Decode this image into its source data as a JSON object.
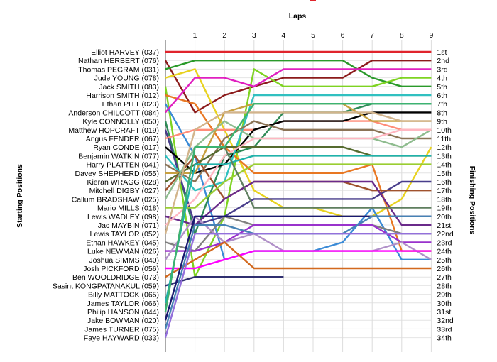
{
  "chart_data": {
    "type": "line",
    "title": "Laps",
    "ylabel_left": "Starting Positions",
    "ylabel_right": "Finishing Positions",
    "x": [
      1,
      2,
      3,
      4,
      5,
      6,
      7,
      8,
      9
    ],
    "left_labels": [
      "Elliot HARVEY (037)",
      "Nathan HERBERT (076)",
      "Thomas PEGRAM (031)",
      "Jude YOUNG (078)",
      "Jack SMITH (083)",
      "Harrison SMITH (012)",
      "Ethan PITT (023)",
      "Anderson CHILCOTT (084)",
      "Kyle CONNOLLY (050)",
      "Matthew HOPCRAFT (019)",
      "Angus FENDER (067)",
      "Ryan CONDE (017)",
      "Benjamin WATKIN (077)",
      "Harry PLATTEN (041)",
      "Davey SHEPHERD (055)",
      "Kieran WRAGG (028)",
      "Mitchell DIGBY (027)",
      "Callum BRADSHAW (025)",
      "Mario MILLS (018)",
      "Lewis WADLEY (098)",
      "Jac MAYBIN (071)",
      "Lewis TAYLOR (052)",
      "Ethan HAWKEY (045)",
      "Luke NEWMAN (026)",
      "Joshua SIMMS (040)",
      "Josh PICKFORD (056)",
      "Ben WOOLDRIDGE (073)",
      "Sasint KONGPATANAKUL (059)",
      "Billy MATTOCK (065)",
      "James TAYLOR (066)",
      "Philip HANSON (044)",
      "Jake BOWMAN (020)",
      "James TURNER (075)",
      "Faye HAYWARD (033)"
    ],
    "right_labels": [
      "1st",
      "2nd",
      "3rd",
      "4th",
      "5th",
      "6th",
      "7th",
      "8th",
      "9th",
      "10th",
      "11th",
      "12th",
      "13th",
      "14th",
      "15th",
      "16th",
      "17th",
      "18th",
      "19th",
      "20th",
      "21st",
      "22nd",
      "23rd",
      "24th",
      "25th",
      "26th",
      "27th",
      "28th",
      "29th",
      "30th",
      "31st",
      "32nd",
      "33rd",
      "34th"
    ],
    "y_range": [
      1,
      34
    ],
    "grid": true,
    "series": [
      {
        "name": "Elliot HARVEY (037)",
        "color": "#e0242c",
        "positions": [
          1,
          1,
          1,
          1,
          1,
          1,
          1,
          1,
          1,
          1
        ]
      },
      {
        "name": "Nathan HERBERT (076)",
        "color": "#8b1a1a",
        "positions": [
          2,
          8,
          6,
          5,
          4,
          4,
          4,
          2,
          2,
          2
        ]
      },
      {
        "name": "Thomas PEGRAM (031)",
        "color": "#2a9a2a",
        "positions": [
          3,
          2,
          2,
          2,
          2,
          2,
          2,
          4,
          5,
          5
        ]
      },
      {
        "name": "Jude YOUNG (078)",
        "color": "#e8d21f",
        "positions": [
          4,
          3,
          10,
          17,
          19,
          19,
          20,
          20,
          18,
          12
        ]
      },
      {
        "name": "Jack SMITH (083)",
        "color": "#7ed321",
        "positions": [
          5,
          27,
          20,
          3,
          5,
          5,
          5,
          5,
          4,
          4
        ]
      },
      {
        "name": "Harrison SMITH (012)",
        "color": "#e87722",
        "positions": [
          6,
          7,
          12,
          15,
          15,
          15,
          15,
          14,
          24,
          24
        ]
      },
      {
        "name": "Ethan PITT (023)",
        "color": "#3a8ad6",
        "positions": [
          7,
          13,
          25,
          24,
          24,
          24,
          23,
          19,
          25,
          25
        ]
      },
      {
        "name": "Anderson CHILCOTT (084)",
        "color": "#e020c0",
        "positions": [
          8,
          4,
          4,
          5,
          3,
          3,
          3,
          3,
          3,
          3
        ]
      },
      {
        "name": "Kyle CONNOLLY (050)",
        "color": "#2e8b57",
        "positions": [
          9,
          22,
          13,
          12,
          8,
          8,
          8,
          7,
          7,
          7
        ]
      },
      {
        "name": "Matthew HOPCRAFT (019)",
        "color": "#483d8b",
        "positions": [
          10,
          21,
          20,
          18,
          18,
          18,
          18,
          18,
          16,
          16
        ]
      },
      {
        "name": "Angus FENDER (067)",
        "color": "#ff8c78",
        "positions": [
          11,
          10,
          10,
          10,
          9,
          9,
          9,
          9,
          10,
          10
        ]
      },
      {
        "name": "Ryan CONDE (017)",
        "color": "#000000",
        "positions": [
          12,
          15,
          14,
          10,
          9,
          9,
          9,
          8,
          8,
          8
        ]
      },
      {
        "name": "Benjamin WATKIN (077)",
        "color": "#30c0c0",
        "positions": [
          13,
          17,
          16,
          6,
          6,
          6,
          6,
          6,
          6,
          6
        ]
      },
      {
        "name": "Harry PLATTEN (041)",
        "color": "#8b7355",
        "positions": [
          14,
          16,
          11,
          9,
          10,
          10,
          10,
          10,
          11,
          11
        ]
      },
      {
        "name": "Davey SHEPHERD (055)",
        "color": "#c8a040",
        "positions": [
          15,
          15,
          8,
          7,
          7,
          7,
          7,
          9,
          9,
          9
        ]
      },
      {
        "name": "Kieran WRAGG (028)",
        "color": "#556b2f",
        "positions": [
          16,
          14,
          12,
          12,
          12,
          12,
          12,
          13,
          13,
          13
        ]
      },
      {
        "name": "Mitchell DIGBY (027)",
        "color": "#a0522d",
        "positions": [
          17,
          13,
          18,
          16,
          16,
          16,
          16,
          17,
          17,
          17
        ]
      },
      {
        "name": "Callum BRADSHAW (025)",
        "color": "#8fbc8f",
        "positions": [
          18,
          12,
          9,
          11,
          11,
          11,
          11,
          11,
          12,
          10
        ]
      },
      {
        "name": "Mario MILLS (018)",
        "color": "#9acd32",
        "positions": [
          19,
          19,
          16,
          14,
          14,
          14,
          14,
          14,
          14,
          14
        ]
      },
      {
        "name": "Lewis WADLEY (098)",
        "color": "#6a2a8a",
        "positions": [
          20,
          21,
          18,
          16,
          16,
          16,
          16,
          16,
          21,
          21
        ]
      },
      {
        "name": "Jac MAYBIN (071)",
        "color": "#ffb6c1",
        "positions": [
          21,
          18,
          13,
          11,
          11,
          11,
          11,
          11,
          10,
          10
        ]
      },
      {
        "name": "Lewis TAYLOR (052)",
        "color": "#d2b48c",
        "positions": [
          22,
          10,
          8,
          8,
          8,
          8,
          8,
          8,
          9,
          9
        ]
      },
      {
        "name": "Ethan HAWKEY (045)",
        "color": "#808080",
        "positions": [
          23,
          24,
          20,
          21,
          21,
          21,
          21,
          21,
          22,
          22
        ]
      },
      {
        "name": "Luke NEWMAN (026)",
        "color": "#9932cc",
        "positions": [
          24,
          24,
          23,
          21,
          21,
          21,
          21,
          21,
          23,
          23
        ]
      },
      {
        "name": "Joshua SIMMS (040)",
        "color": "#b090c8",
        "positions": [
          25,
          20,
          23,
          22,
          24,
          24,
          24,
          24,
          23,
          25
        ]
      },
      {
        "name": "Josh PICKFORD (056)",
        "color": "#ff00ff",
        "positions": [
          26,
          26,
          25,
          24,
          24,
          24,
          24,
          24,
          24,
          24
        ]
      },
      {
        "name": "Ben WOOLDRIDGE (073)",
        "color": "#d2691e",
        "positions": [
          27,
          25,
          23,
          26,
          26,
          26,
          26,
          26,
          26,
          26
        ]
      },
      {
        "name": "Sasint KONGPATANAKUL (059)",
        "color": "#2f2f6f",
        "positions": [
          28,
          27,
          27,
          27,
          27
        ]
      },
      {
        "name": "Billy MATTOCK (065)",
        "color": "#20b2aa",
        "positions": [
          30,
          14,
          14,
          13,
          13,
          13,
          13,
          13,
          13,
          13
        ]
      },
      {
        "name": "James TAYLOR (066)",
        "color": "#5f7f5f",
        "positions": [
          31,
          12,
          12,
          19,
          19,
          19,
          19,
          19,
          19,
          19
        ]
      },
      {
        "name": "Philip HANSON (044)",
        "color": "#3cb371",
        "positions": [
          31,
          12,
          12,
          7,
          7,
          7,
          7,
          7,
          7,
          7
        ]
      },
      {
        "name": "Jake BOWMAN (020)",
        "color": "#191970",
        "positions": [
          32,
          20,
          20,
          20,
          20,
          20,
          20,
          20,
          20,
          20
        ]
      },
      {
        "name": "James TURNER (075)",
        "color": "#4682b4",
        "positions": [
          33,
          21,
          21,
          22,
          22,
          22,
          22,
          20,
          20,
          20
        ]
      },
      {
        "name": "Faye HAYWARD (033)",
        "color": "#9370db",
        "positions": [
          34,
          22,
          22,
          22,
          22,
          22,
          22,
          22,
          22,
          22
        ]
      }
    ],
    "annotations": [
      {
        "type": "retired-marker",
        "series": "Sasint KONGPATANAKUL (059)",
        "lap": 5,
        "color": "#e0242c"
      }
    ]
  }
}
